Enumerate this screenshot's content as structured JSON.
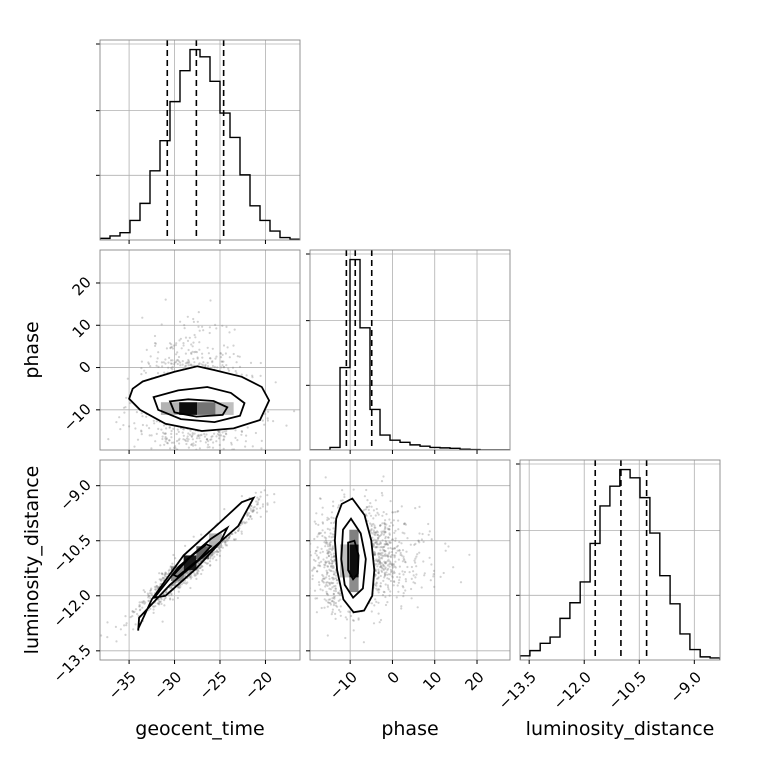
{
  "chart_data": {
    "type": "corner",
    "parameters": [
      "geocent_time",
      "phase",
      "luminosity_distance"
    ],
    "xlabels": [
      "geocent_time",
      "phase",
      "luminosity_distance"
    ],
    "ylabels": [
      "",
      "phase",
      "luminosity_distance"
    ],
    "ranges": {
      "geocent_time": [
        -38.2,
        -16.2
      ],
      "phase": [
        -19.5,
        27.8
      ],
      "luminosity_distance": [
        -13.75,
        -8.3
      ]
    },
    "ticks": {
      "geocent_time": [
        -35,
        -30,
        -25,
        -20
      ],
      "phase": [
        -10,
        0,
        10,
        20
      ],
      "luminosity_distance": [
        -13.5,
        -12.0,
        -10.5,
        -9.0
      ]
    },
    "tick_labels": {
      "geocent_time": [
        "−35",
        "−30",
        "−25",
        "−20"
      ],
      "phase": [
        "−10",
        "0",
        "10",
        "20"
      ],
      "luminosity_distance": [
        "−13.5",
        "−12.0",
        "−10.5",
        "−9.0"
      ]
    },
    "grid": true,
    "quantiles": {
      "geocent_time": [
        -30.8,
        -27.6,
        -24.6
      ],
      "phase": [
        -10.9,
        -8.8,
        -4.9
      ],
      "luminosity_distance": [
        -11.7,
        -11.0,
        -10.3
      ]
    },
    "histograms": {
      "geocent_time": {
        "bin_edges": [
          -38.2,
          -37.1,
          -36.0,
          -34.9,
          -33.8,
          -32.7,
          -31.6,
          -30.5,
          -29.4,
          -28.3,
          -27.2,
          -26.1,
          -25.0,
          -23.9,
          -22.8,
          -21.7,
          -20.6,
          -19.5,
          -18.4,
          -17.3,
          -16.2
        ],
        "counts": [
          2,
          5,
          9,
          24,
          45,
          85,
          122,
          170,
          208,
          234,
          225,
          195,
          156,
          126,
          80,
          42,
          24,
          11,
          3,
          1
        ]
      },
      "phase": {
        "bin_edges": [
          -19.5,
          -17.13,
          -14.77,
          -12.4,
          -10.04,
          -7.67,
          -5.31,
          -2.94,
          -0.58,
          1.79,
          4.15,
          6.52,
          8.88,
          11.25,
          13.61,
          15.98,
          18.34,
          20.71,
          23.07,
          25.44,
          27.8
        ],
        "counts": [
          0,
          0,
          6,
          193,
          446,
          286,
          95,
          35,
          23,
          18,
          12,
          9,
          6,
          5,
          4,
          2,
          1,
          0,
          0,
          0
        ]
      },
      "luminosity_distance": {
        "bin_edges": [
          -13.75,
          -13.48,
          -13.2,
          -12.93,
          -12.66,
          -12.39,
          -12.11,
          -11.84,
          -11.57,
          -11.3,
          -11.03,
          -10.75,
          -10.48,
          -10.21,
          -9.94,
          -9.66,
          -9.39,
          -9.12,
          -8.84,
          -8.57,
          -8.3
        ],
        "counts": [
          4,
          9,
          16,
          22,
          40,
          55,
          75,
          112,
          148,
          167,
          183,
          175,
          156,
          122,
          81,
          54,
          25,
          10,
          3,
          2
        ]
      }
    },
    "scatter_panels": [
      {
        "x": "geocent_time",
        "y": "phase",
        "center": [
          -27.6,
          -8.8
        ],
        "sigma": [
          3.0,
          5.5
        ],
        "correlation": -0.1,
        "tail_skew": 0.6,
        "contour_levels": [
          [
            [
              -34.6,
              -5.0
            ],
            [
              -33.5,
              -3.3
            ],
            [
              -30.0,
              -1.0
            ],
            [
              -27.5,
              0.3
            ],
            [
              -25.6,
              -0.6
            ],
            [
              -22.6,
              -2.2
            ],
            [
              -20.4,
              -4.6
            ],
            [
              -19.6,
              -7.8
            ],
            [
              -20.6,
              -12.4
            ],
            [
              -23.5,
              -14.4
            ],
            [
              -27.0,
              -15.0
            ],
            [
              -31.0,
              -13.3
            ],
            [
              -33.8,
              -10.0
            ],
            [
              -35.0,
              -7.4
            ]
          ],
          [
            [
              -32.3,
              -7.0
            ],
            [
              -29.6,
              -5.4
            ],
            [
              -26.4,
              -4.6
            ],
            [
              -23.8,
              -6.0
            ],
            [
              -22.3,
              -8.4
            ],
            [
              -22.8,
              -11.4
            ],
            [
              -25.6,
              -12.9
            ],
            [
              -29.3,
              -12.2
            ],
            [
              -31.8,
              -10.0
            ]
          ],
          [
            [
              -30.5,
              -8.0
            ],
            [
              -28.5,
              -7.5
            ],
            [
              -25.7,
              -7.9
            ],
            [
              -24.2,
              -9.4
            ],
            [
              -24.7,
              -11.2
            ],
            [
              -27.6,
              -11.6
            ],
            [
              -30.0,
              -10.6
            ]
          ]
        ],
        "density_cells": [
          {
            "x": [
              -29.5,
              -27.5
            ],
            "y": [
              -11.2,
              -8.2
            ],
            "shade": 0.95
          },
          {
            "x": [
              -27.5,
              -25.5
            ],
            "y": [
              -11.2,
              -8.2
            ],
            "shade": 0.55
          },
          {
            "x": [
              -31.5,
              -29.5
            ],
            "y": [
              -11.2,
              -8.2
            ],
            "shade": 0.3
          },
          {
            "x": [
              -25.5,
              -23.5
            ],
            "y": [
              -11.2,
              -8.2
            ],
            "shade": 0.25
          }
        ]
      },
      {
        "x": "geocent_time",
        "y": "luminosity_distance",
        "center": [
          -27.6,
          -11.0
        ],
        "sigma": [
          3.0,
          0.68
        ],
        "correlation": 0.96,
        "tail_skew": 0.0,
        "contour_levels": [
          [
            [
              -34.0,
              -12.95
            ],
            [
              -33.9,
              -12.6
            ],
            [
              -30.5,
              -11.7
            ],
            [
              -26.0,
              -10.75
            ],
            [
              -23.0,
              -10.1
            ],
            [
              -21.3,
              -9.33
            ],
            [
              -22.6,
              -9.45
            ],
            [
              -25.0,
              -10.0
            ],
            [
              -29.0,
              -10.9
            ],
            [
              -32.5,
              -12.1
            ],
            [
              -34.0,
              -12.9
            ]
          ],
          [
            [
              -32.2,
              -12.05
            ],
            [
              -29.5,
              -11.2
            ],
            [
              -26.0,
              -10.45
            ],
            [
              -24.2,
              -10.15
            ],
            [
              -25.0,
              -10.55
            ],
            [
              -27.6,
              -11.25
            ],
            [
              -31.0,
              -12.0
            ],
            [
              -32.2,
              -12.05
            ]
          ],
          [
            [
              -30.1,
              -11.43
            ],
            [
              -28.3,
              -10.95
            ],
            [
              -26.5,
              -10.6
            ],
            [
              -26.0,
              -10.65
            ],
            [
              -27.3,
              -11.0
            ],
            [
              -29.7,
              -11.48
            ],
            [
              -30.1,
              -11.43
            ]
          ]
        ],
        "density_cells": [
          {
            "x": [
              -29.0,
              -27.6
            ],
            "y": [
              -11.3,
              -10.9
            ],
            "shade": 0.9
          },
          {
            "x": [
              -27.6,
              -26.2
            ],
            "y": [
              -11.0,
              -10.65
            ],
            "shade": 0.6
          },
          {
            "x": [
              -30.4,
              -29.0
            ],
            "y": [
              -11.6,
              -11.2
            ],
            "shade": 0.45
          },
          {
            "x": [
              -26.2,
              -24.8
            ],
            "y": [
              -10.7,
              -10.3
            ],
            "shade": 0.3
          }
        ]
      },
      {
        "x": "phase",
        "y": "luminosity_distance",
        "center": [
          -8.8,
          -11.0
        ],
        "sigma": [
          5.5,
          0.68
        ],
        "correlation": 0.05,
        "tail_skew": 0.6,
        "contour_levels": [
          [
            [
              -12.0,
              -9.5
            ],
            [
              -9.5,
              -9.35
            ],
            [
              -6.6,
              -9.8
            ],
            [
              -5.0,
              -10.5
            ],
            [
              -4.3,
              -11.3
            ],
            [
              -4.8,
              -12.0
            ],
            [
              -6.7,
              -12.4
            ],
            [
              -9.2,
              -12.45
            ],
            [
              -11.6,
              -12.1
            ],
            [
              -13.1,
              -11.3
            ],
            [
              -13.6,
              -10.5
            ],
            [
              -13.3,
              -9.9
            ]
          ],
          [
            [
              -11.7,
              -10.2
            ],
            [
              -9.8,
              -9.9
            ],
            [
              -7.5,
              -10.3
            ],
            [
              -6.3,
              -11.0
            ],
            [
              -7.0,
              -11.8
            ],
            [
              -9.3,
              -12.05
            ],
            [
              -11.3,
              -11.7
            ],
            [
              -12.1,
              -11.0
            ]
          ],
          [
            [
              -10.5,
              -10.55
            ],
            [
              -9.0,
              -10.5
            ],
            [
              -8.0,
              -10.9
            ],
            [
              -8.2,
              -11.4
            ],
            [
              -9.3,
              -11.55
            ],
            [
              -10.5,
              -11.3
            ]
          ]
        ],
        "density_cells": [
          {
            "x": [
              -10.2,
              -8.0
            ],
            "y": [
              -11.5,
              -10.6
            ],
            "shade": 0.95
          },
          {
            "x": [
              -10.2,
              -8.0
            ],
            "y": [
              -10.6,
              -10.2
            ],
            "shade": 0.5
          },
          {
            "x": [
              -10.2,
              -8.0
            ],
            "y": [
              -11.9,
              -11.5
            ],
            "shade": 0.45
          },
          {
            "x": [
              -12.4,
              -10.2
            ],
            "y": [
              -11.5,
              -10.6
            ],
            "shade": 0.25
          }
        ]
      }
    ],
    "colors": {
      "line": "#000000",
      "grid": "#b0b0b0",
      "scatter": "#7f7f7f"
    }
  }
}
